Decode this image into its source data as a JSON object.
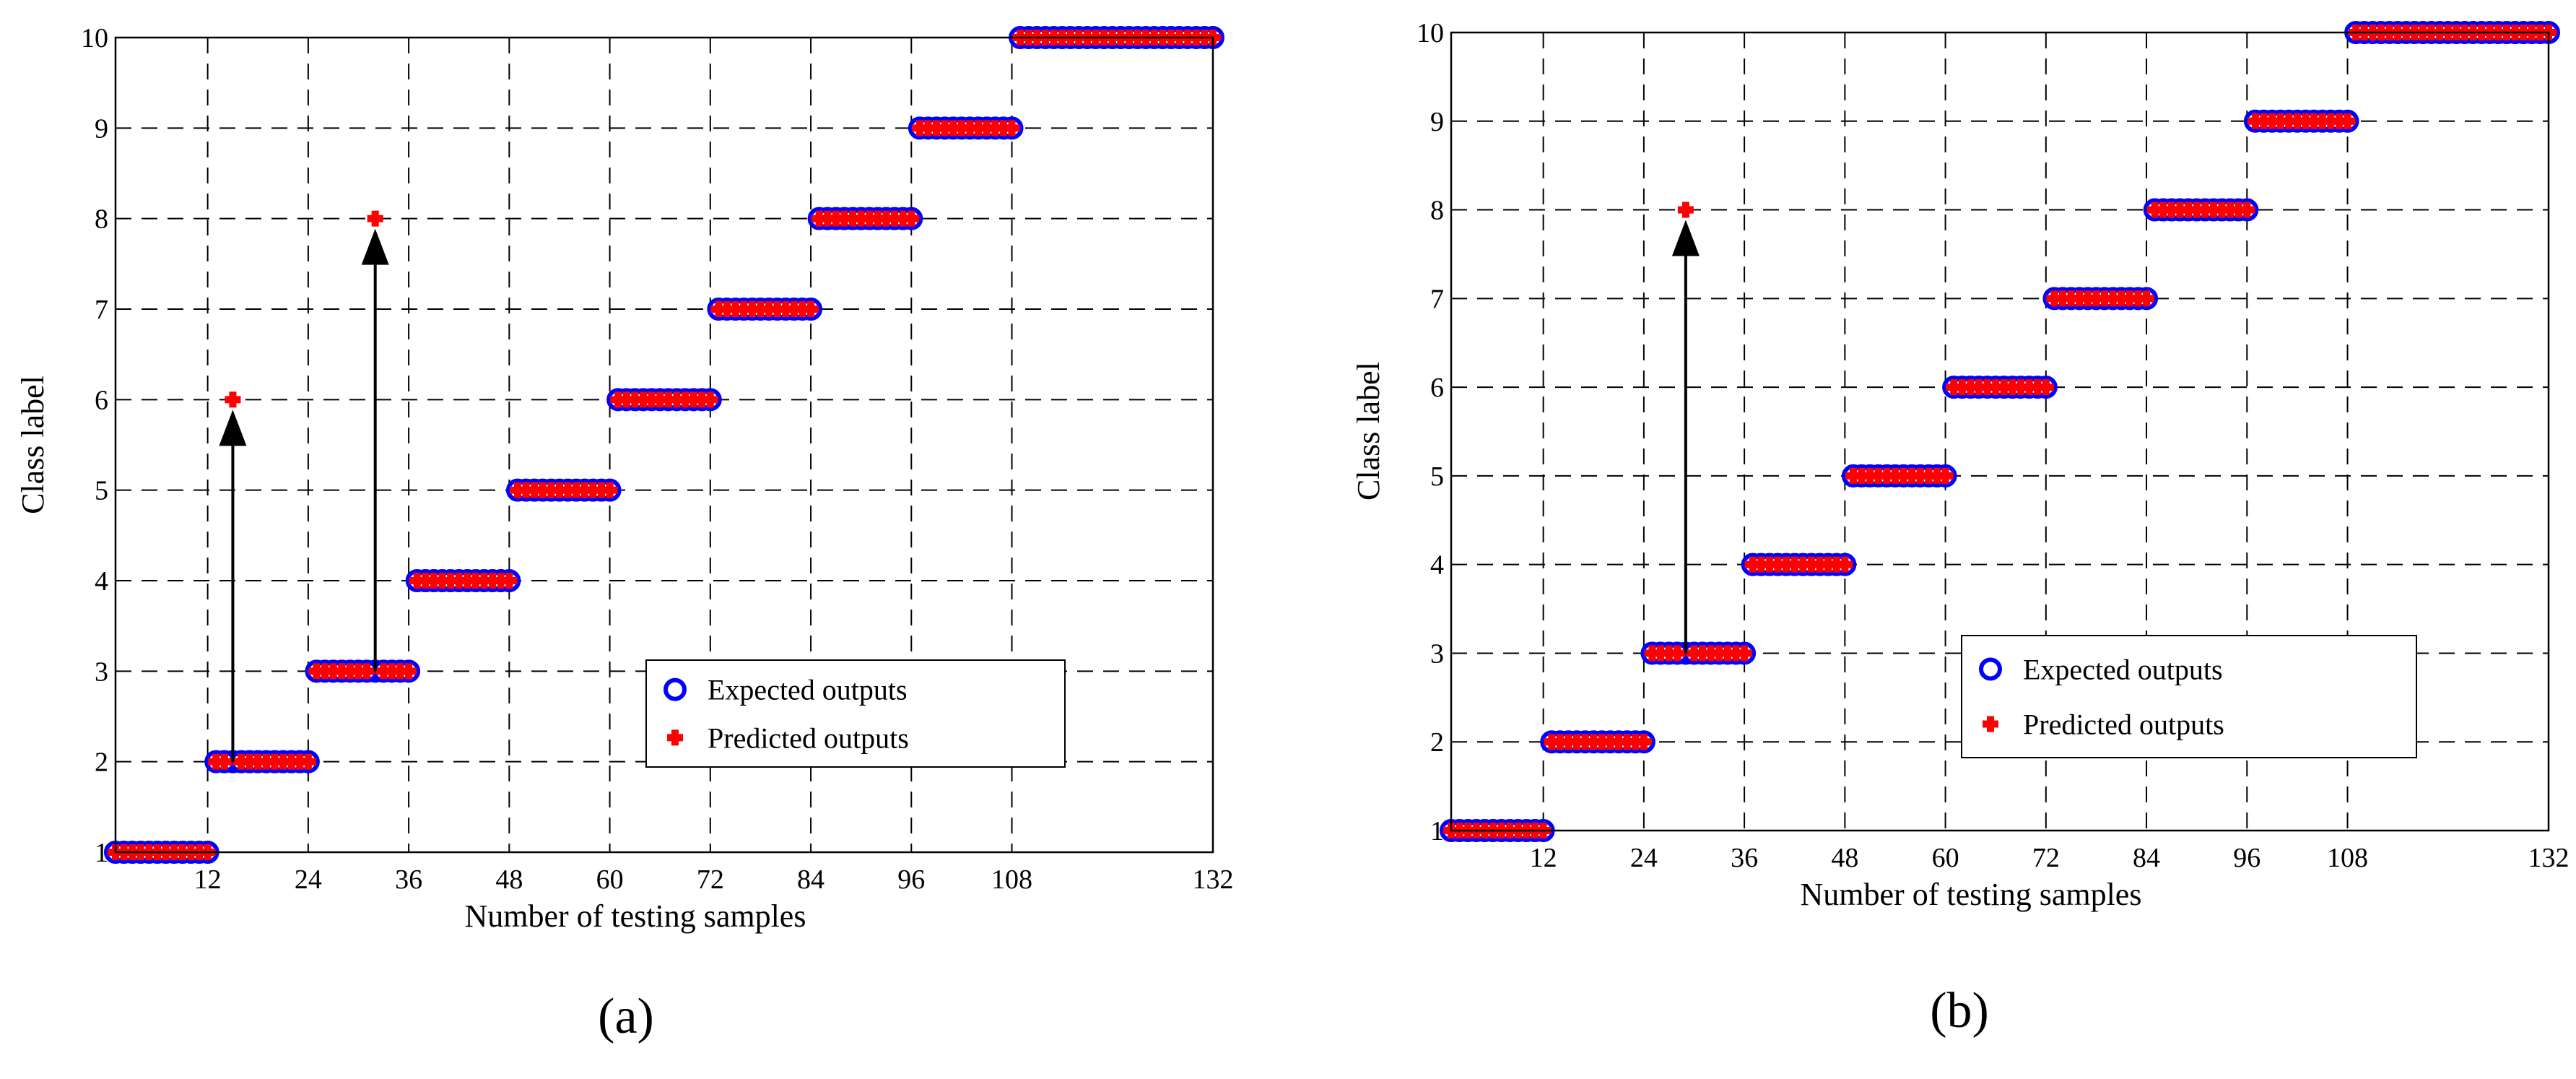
{
  "chart_data": [
    {
      "type": "scatter",
      "panel_label": "(a)",
      "xlabel": "Number of testing samples",
      "ylabel": "Class label",
      "xlim": [
        1,
        132
      ],
      "ylim": [
        1,
        10
      ],
      "xticks": [
        12,
        24,
        36,
        48,
        60,
        72,
        84,
        96,
        108,
        132
      ],
      "yticks": [
        1,
        2,
        3,
        4,
        5,
        6,
        7,
        8,
        9,
        10
      ],
      "grid": true,
      "legend_position": "lower-right",
      "series": [
        {
          "name": "Expected outputs",
          "marker": "circle",
          "color": "#0000ff",
          "segments": [
            {
              "x_start": 1,
              "x_end": 12,
              "y": 1
            },
            {
              "x_start": 13,
              "x_end": 24,
              "y": 2
            },
            {
              "x_start": 25,
              "x_end": 36,
              "y": 3
            },
            {
              "x_start": 37,
              "x_end": 48,
              "y": 4
            },
            {
              "x_start": 49,
              "x_end": 60,
              "y": 5
            },
            {
              "x_start": 61,
              "x_end": 72,
              "y": 6
            },
            {
              "x_start": 73,
              "x_end": 84,
              "y": 7
            },
            {
              "x_start": 85,
              "x_end": 96,
              "y": 8
            },
            {
              "x_start": 97,
              "x_end": 108,
              "y": 9
            },
            {
              "x_start": 109,
              "x_end": 132,
              "y": 10
            }
          ]
        },
        {
          "name": "Predicted outputs",
          "marker": "plus",
          "color": "#ff0000",
          "misclassified": [
            {
              "x": 15,
              "y": 6
            },
            {
              "x": 32,
              "y": 8
            }
          ]
        }
      ]
    },
    {
      "type": "scatter",
      "panel_label": "(b)",
      "xlabel": "Number of testing samples",
      "ylabel": "Class label",
      "xlim": [
        1,
        132
      ],
      "ylim": [
        1,
        10
      ],
      "xticks": [
        12,
        24,
        36,
        48,
        60,
        72,
        84,
        96,
        108,
        132
      ],
      "yticks": [
        1,
        2,
        3,
        4,
        5,
        6,
        7,
        8,
        9,
        10
      ],
      "grid": true,
      "legend_position": "lower-right",
      "series": [
        {
          "name": "Expected outputs",
          "marker": "circle",
          "color": "#0000ff",
          "segments": [
            {
              "x_start": 1,
              "x_end": 12,
              "y": 1
            },
            {
              "x_start": 13,
              "x_end": 24,
              "y": 2
            },
            {
              "x_start": 25,
              "x_end": 36,
              "y": 3
            },
            {
              "x_start": 37,
              "x_end": 48,
              "y": 4
            },
            {
              "x_start": 49,
              "x_end": 60,
              "y": 5
            },
            {
              "x_start": 61,
              "x_end": 72,
              "y": 6
            },
            {
              "x_start": 73,
              "x_end": 84,
              "y": 7
            },
            {
              "x_start": 85,
              "x_end": 96,
              "y": 8
            },
            {
              "x_start": 97,
              "x_end": 108,
              "y": 9
            },
            {
              "x_start": 109,
              "x_end": 132,
              "y": 10
            }
          ]
        },
        {
          "name": "Predicted outputs",
          "marker": "plus",
          "color": "#ff0000",
          "misclassified": [
            {
              "x": 29,
              "y": 8
            }
          ]
        }
      ]
    }
  ]
}
